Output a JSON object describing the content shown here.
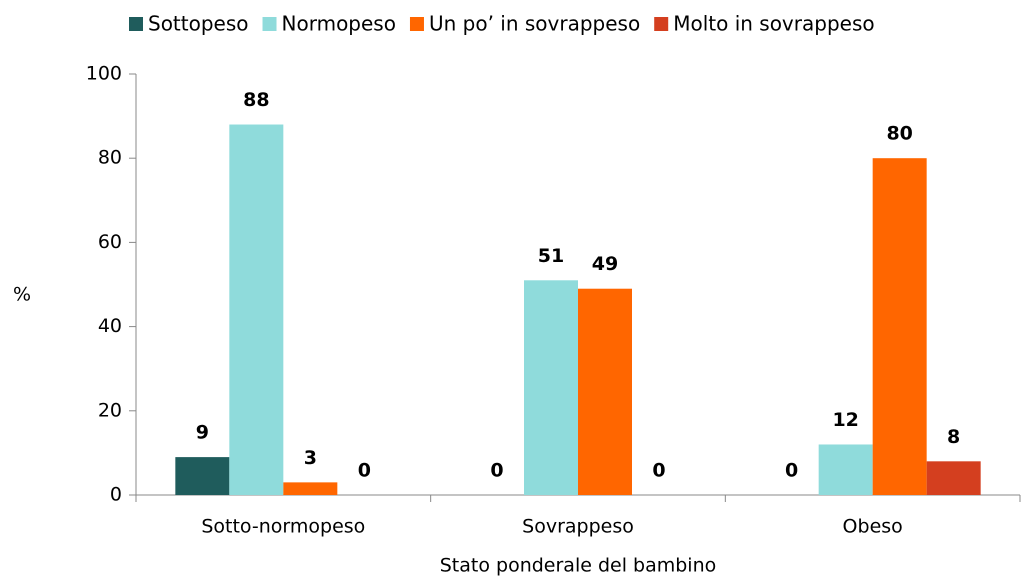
{
  "chart_data": {
    "type": "bar",
    "categories": [
      "Sotto-normopeso",
      "Sovrappeso",
      "Obeso"
    ],
    "series": [
      {
        "name": "Sottopeso",
        "color": "#1f5c5c",
        "values": [
          9,
          0,
          0
        ]
      },
      {
        "name": "Normopeso",
        "color": "#8fdbdb",
        "values": [
          88,
          51,
          12
        ]
      },
      {
        "name": "Un po’ in sovrappeso",
        "color": "#ff6600",
        "values": [
          3,
          49,
          80
        ]
      },
      {
        "name": "Molto in sovrappeso",
        "color": "#d43f1f",
        "values": [
          0,
          0,
          8
        ]
      }
    ],
    "ylabel": "%",
    "xlabel": "Stato ponderale del bambino",
    "ylim": [
      0,
      100
    ],
    "yticks": [
      0,
      20,
      40,
      60,
      80,
      100
    ],
    "grid": false,
    "legend": "top"
  }
}
